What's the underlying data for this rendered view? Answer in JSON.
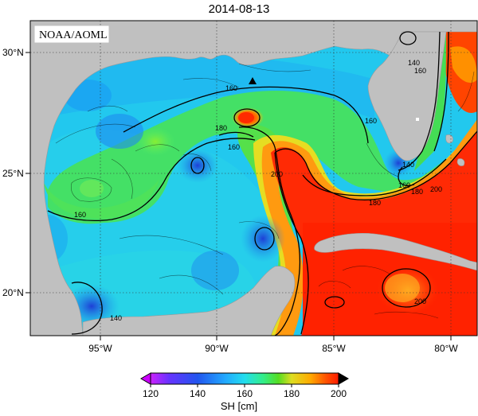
{
  "title": "2014-08-13",
  "source_label": "NOAA/AOML",
  "map": {
    "variable": "SH",
    "units": "cm",
    "lon_ticks": [
      "95°W",
      "90°W",
      "85°W",
      "80°W"
    ],
    "lat_ticks": [
      "30°N",
      "25°N",
      "20°N"
    ],
    "contour_labels": [
      "160",
      "180",
      "160",
      "200",
      "160",
      "160",
      "180",
      "160",
      "180",
      "140",
      "200",
      "140",
      "200",
      "160",
      "140"
    ],
    "colors": {
      "land": "#c0c0c0",
      "warm_core": "#ff1a00",
      "loop_current": "#ff3300",
      "shelf_green": "#33dd44",
      "basin_cyan": "#22ccee",
      "low_blue": "#2255dd"
    }
  },
  "colorbar": {
    "label": "SH [cm]",
    "ticks": [
      "120",
      "140",
      "160",
      "180",
      "200"
    ],
    "min": 120,
    "max": 200,
    "colors": [
      "#cc00ff",
      "#6633ff",
      "#2255ee",
      "#22aaff",
      "#22ddee",
      "#33ee88",
      "#55dd22",
      "#dddd22",
      "#ffaa00",
      "#ff5500",
      "#ff1a00"
    ]
  }
}
